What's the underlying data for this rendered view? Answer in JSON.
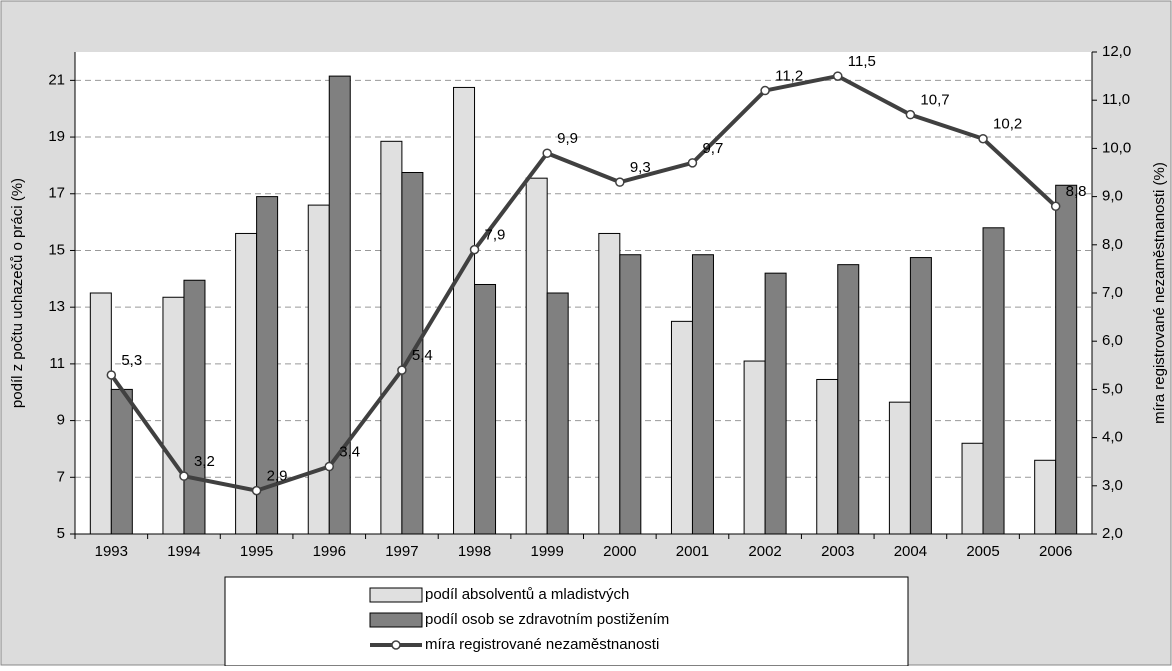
{
  "chart_data": {
    "type": "bar",
    "categories": [
      "1993",
      "1994",
      "1995",
      "1996",
      "1997",
      "1998",
      "1999",
      "2000",
      "2001",
      "2002",
      "2003",
      "2004",
      "2005",
      "2006"
    ],
    "ylabel": "podíl z počtu uchazečů o práci (%)",
    "y2label": "míra registrované nezaměstnanosti (%)",
    "ylim": [
      5,
      22
    ],
    "yticks": [
      5,
      7,
      9,
      11,
      13,
      15,
      17,
      19,
      21
    ],
    "y2lim": [
      2,
      12
    ],
    "y2ticks": [
      {
        "value": 2,
        "label": "2,0"
      },
      {
        "value": 3,
        "label": "3,0"
      },
      {
        "value": 4,
        "label": "4,0"
      },
      {
        "value": 5,
        "label": "5,0"
      },
      {
        "value": 6,
        "label": "6,0"
      },
      {
        "value": 7,
        "label": "7,0"
      },
      {
        "value": 8,
        "label": "8,0"
      },
      {
        "value": 9,
        "label": "9,0"
      },
      {
        "value": 10,
        "label": "10,0"
      },
      {
        "value": 11,
        "label": "11,0"
      },
      {
        "value": 12,
        "label": "12,0"
      }
    ],
    "grid": true,
    "series": [
      {
        "name": "podíl absolventů a mladistvých",
        "type": "bar",
        "color": "#e0e0e0",
        "values": [
          13.5,
          13.35,
          15.6,
          16.6,
          18.85,
          20.75,
          17.55,
          15.6,
          12.5,
          11.1,
          10.45,
          9.65,
          8.2,
          7.6
        ]
      },
      {
        "name": "podíl osob se zdravotním postižením",
        "type": "bar",
        "color": "#808080",
        "values": [
          10.1,
          13.95,
          16.9,
          21.15,
          17.75,
          13.8,
          13.5,
          14.85,
          14.85,
          14.2,
          14.5,
          14.75,
          15.8,
          17.3
        ]
      },
      {
        "name": "míra registrované nezaměstnanosti",
        "type": "line",
        "axis": "y2",
        "color": "#404040",
        "values": [
          5.3,
          3.2,
          2.9,
          3.4,
          5.4,
          7.9,
          9.9,
          9.3,
          9.7,
          11.2,
          11.5,
          10.7,
          10.2,
          8.8
        ],
        "value_labels": [
          "5,3",
          "3,2",
          "2,9",
          "3,4",
          "5,4",
          "7,9",
          "9,9",
          "9,3",
          "9,7",
          "11,2",
          "11,5",
          "10,7",
          "10,2",
          "8,8"
        ]
      }
    ]
  }
}
